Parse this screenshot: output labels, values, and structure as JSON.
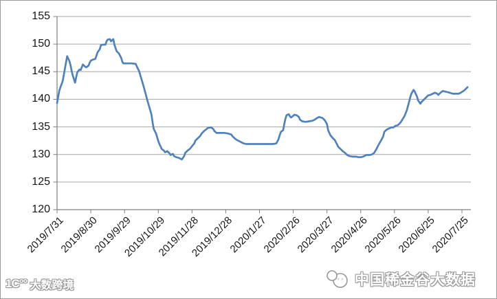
{
  "chart_data": {
    "type": "line",
    "title": "",
    "grid": true,
    "legend": "none",
    "x_encoding": "days_since_first_tick",
    "x_axis": {
      "tick_labels": [
        "2019/7/31",
        "2019/8/30",
        "2019/9/29",
        "2019/10/29",
        "2019/11/28",
        "2019/12/28",
        "2020/1/27",
        "2020/2/26",
        "2020/3/27",
        "2020/4/26",
        "2020/5/26",
        "2020/6/25",
        "2020/7/25"
      ],
      "tick_days": [
        0,
        30,
        60,
        90,
        120,
        150,
        180,
        210,
        240,
        270,
        300,
        330,
        360
      ]
    },
    "y_axis": {
      "min": 120,
      "max": 155,
      "step": 5,
      "tick_labels": [
        "155",
        "150",
        "145",
        "140",
        "135",
        "130",
        "125",
        "120"
      ]
    },
    "series": [
      {
        "color": "#4F81BD",
        "points": [
          [
            0,
            139.3
          ],
          [
            2,
            141.6
          ],
          [
            5,
            143.3
          ],
          [
            7,
            145.6
          ],
          [
            9,
            147.8
          ],
          [
            11,
            146.9
          ],
          [
            12,
            146.2
          ],
          [
            13,
            145.1
          ],
          [
            14,
            144.3
          ],
          [
            16,
            143.0
          ],
          [
            17,
            144.0
          ],
          [
            18,
            144.9
          ],
          [
            20,
            145.4
          ],
          [
            21,
            145.3
          ],
          [
            23,
            146.3
          ],
          [
            25,
            145.9
          ],
          [
            26,
            145.8
          ],
          [
            28,
            146.1
          ],
          [
            29,
            146.6
          ],
          [
            30,
            147.0
          ],
          [
            32,
            147.2
          ],
          [
            34,
            147.3
          ],
          [
            35,
            147.9
          ],
          [
            36,
            148.5
          ],
          [
            38,
            149.1
          ],
          [
            39,
            149.8
          ],
          [
            41,
            149.9
          ],
          [
            43,
            149.9
          ],
          [
            44,
            150.5
          ],
          [
            45,
            150.8
          ],
          [
            47,
            150.9
          ],
          [
            48,
            150.5
          ],
          [
            50,
            150.9
          ],
          [
            51,
            149.9
          ],
          [
            53,
            148.7
          ],
          [
            55,
            148.3
          ],
          [
            57,
            147.5
          ],
          [
            58,
            146.8
          ],
          [
            59,
            146.5
          ],
          [
            63,
            146.5
          ],
          [
            66,
            146.5
          ],
          [
            70,
            146.4
          ],
          [
            71,
            145.9
          ],
          [
            73,
            145.1
          ],
          [
            75,
            143.7
          ],
          [
            77,
            142.3
          ],
          [
            79,
            140.8
          ],
          [
            80,
            140.0
          ],
          [
            82,
            138.6
          ],
          [
            84,
            137.2
          ],
          [
            85,
            135.7
          ],
          [
            86,
            134.6
          ],
          [
            88,
            133.8
          ],
          [
            90,
            132.4
          ],
          [
            91,
            131.9
          ],
          [
            92,
            131.5
          ],
          [
            93,
            131.0
          ],
          [
            95,
            130.7
          ],
          [
            96,
            130.4
          ],
          [
            98,
            130.6
          ],
          [
            100,
            130.2
          ],
          [
            101,
            129.9
          ],
          [
            103,
            130.1
          ],
          [
            104,
            129.7
          ],
          [
            106,
            129.5
          ],
          [
            108,
            129.4
          ],
          [
            110,
            129.2
          ],
          [
            111,
            129.1
          ],
          [
            113,
            129.7
          ],
          [
            114,
            130.3
          ],
          [
            116,
            130.7
          ],
          [
            118,
            131.0
          ],
          [
            120,
            131.5
          ],
          [
            122,
            132.0
          ],
          [
            123,
            132.5
          ],
          [
            125,
            132.9
          ],
          [
            127,
            133.3
          ],
          [
            129,
            133.9
          ],
          [
            131,
            134.3
          ],
          [
            133,
            134.6
          ],
          [
            134,
            134.8
          ],
          [
            137,
            134.9
          ],
          [
            139,
            134.6
          ],
          [
            140,
            134.2
          ],
          [
            142,
            133.9
          ],
          [
            146,
            133.9
          ],
          [
            149,
            133.9
          ],
          [
            152,
            133.8
          ],
          [
            155,
            133.6
          ],
          [
            156,
            133.3
          ],
          [
            158,
            132.9
          ],
          [
            160,
            132.6
          ],
          [
            162,
            132.4
          ],
          [
            164,
            132.2
          ],
          [
            166,
            132.0
          ],
          [
            168,
            131.9
          ],
          [
            172,
            131.9
          ],
          [
            176,
            131.9
          ],
          [
            180,
            131.9
          ],
          [
            184,
            131.9
          ],
          [
            188,
            131.9
          ],
          [
            192,
            131.9
          ],
          [
            195,
            132.0
          ],
          [
            197,
            132.8
          ],
          [
            198,
            133.5
          ],
          [
            199,
            134.1
          ],
          [
            201,
            134.4
          ],
          [
            202,
            135.5
          ],
          [
            203,
            136.4
          ],
          [
            204,
            137.1
          ],
          [
            206,
            137.3
          ],
          [
            207,
            136.9
          ],
          [
            208,
            136.7
          ],
          [
            210,
            137.0
          ],
          [
            211,
            137.2
          ],
          [
            213,
            137.1
          ],
          [
            215,
            136.8
          ],
          [
            216,
            136.3
          ],
          [
            218,
            136.0
          ],
          [
            221,
            135.9
          ],
          [
            224,
            136.0
          ],
          [
            227,
            136.1
          ],
          [
            229,
            136.3
          ],
          [
            232,
            136.7
          ],
          [
            233,
            136.8
          ],
          [
            236,
            136.6
          ],
          [
            238,
            136.2
          ],
          [
            240,
            135.5
          ],
          [
            241,
            134.4
          ],
          [
            243,
            133.5
          ],
          [
            245,
            133.0
          ],
          [
            247,
            132.6
          ],
          [
            249,
            131.8
          ],
          [
            250,
            131.4
          ],
          [
            252,
            131.0
          ],
          [
            254,
            130.6
          ],
          [
            256,
            130.3
          ],
          [
            258,
            129.9
          ],
          [
            260,
            129.7
          ],
          [
            263,
            129.6
          ],
          [
            266,
            129.6
          ],
          [
            268,
            129.5
          ],
          [
            270,
            129.5
          ],
          [
            272,
            129.6
          ],
          [
            275,
            129.9
          ],
          [
            278,
            129.9
          ],
          [
            280,
            130.0
          ],
          [
            282,
            130.3
          ],
          [
            284,
            131.0
          ],
          [
            286,
            131.8
          ],
          [
            288,
            132.5
          ],
          [
            290,
            133.3
          ],
          [
            291,
            134.1
          ],
          [
            293,
            134.5
          ],
          [
            295,
            134.7
          ],
          [
            297,
            134.9
          ],
          [
            299,
            134.9
          ],
          [
            301,
            135.2
          ],
          [
            303,
            135.3
          ],
          [
            305,
            135.7
          ],
          [
            307,
            136.3
          ],
          [
            309,
            137.0
          ],
          [
            311,
            138.0
          ],
          [
            312,
            138.8
          ],
          [
            313,
            139.5
          ],
          [
            314,
            140.3
          ],
          [
            315,
            141.0
          ],
          [
            317,
            141.7
          ],
          [
            318,
            141.4
          ],
          [
            320,
            140.5
          ],
          [
            321,
            139.8
          ],
          [
            323,
            139.2
          ],
          [
            324,
            139.5
          ],
          [
            326,
            139.9
          ],
          [
            328,
            140.3
          ],
          [
            330,
            140.7
          ],
          [
            332,
            140.8
          ],
          [
            334,
            141.0
          ],
          [
            336,
            141.2
          ],
          [
            338,
            141.0
          ],
          [
            339,
            140.8
          ],
          [
            341,
            141.2
          ],
          [
            343,
            141.5
          ],
          [
            345,
            141.4
          ],
          [
            347,
            141.3
          ],
          [
            349,
            141.2
          ],
          [
            352,
            141.0
          ],
          [
            354,
            141.0
          ],
          [
            357,
            141.0
          ],
          [
            359,
            141.2
          ],
          [
            362,
            141.6
          ],
          [
            364,
            142.0
          ],
          [
            365,
            142.2
          ]
        ]
      }
    ],
    "colors": {
      "line": "#4F81BD",
      "gridline": "#a6a6a6",
      "axis": "#7f7f7f",
      "label": "#151515"
    }
  },
  "watermarks": {
    "bottom_left": {
      "icon_text": "1C°°",
      "text": "大数跨境"
    },
    "bottom_right": {
      "text": "中国稀金谷大数据"
    }
  }
}
